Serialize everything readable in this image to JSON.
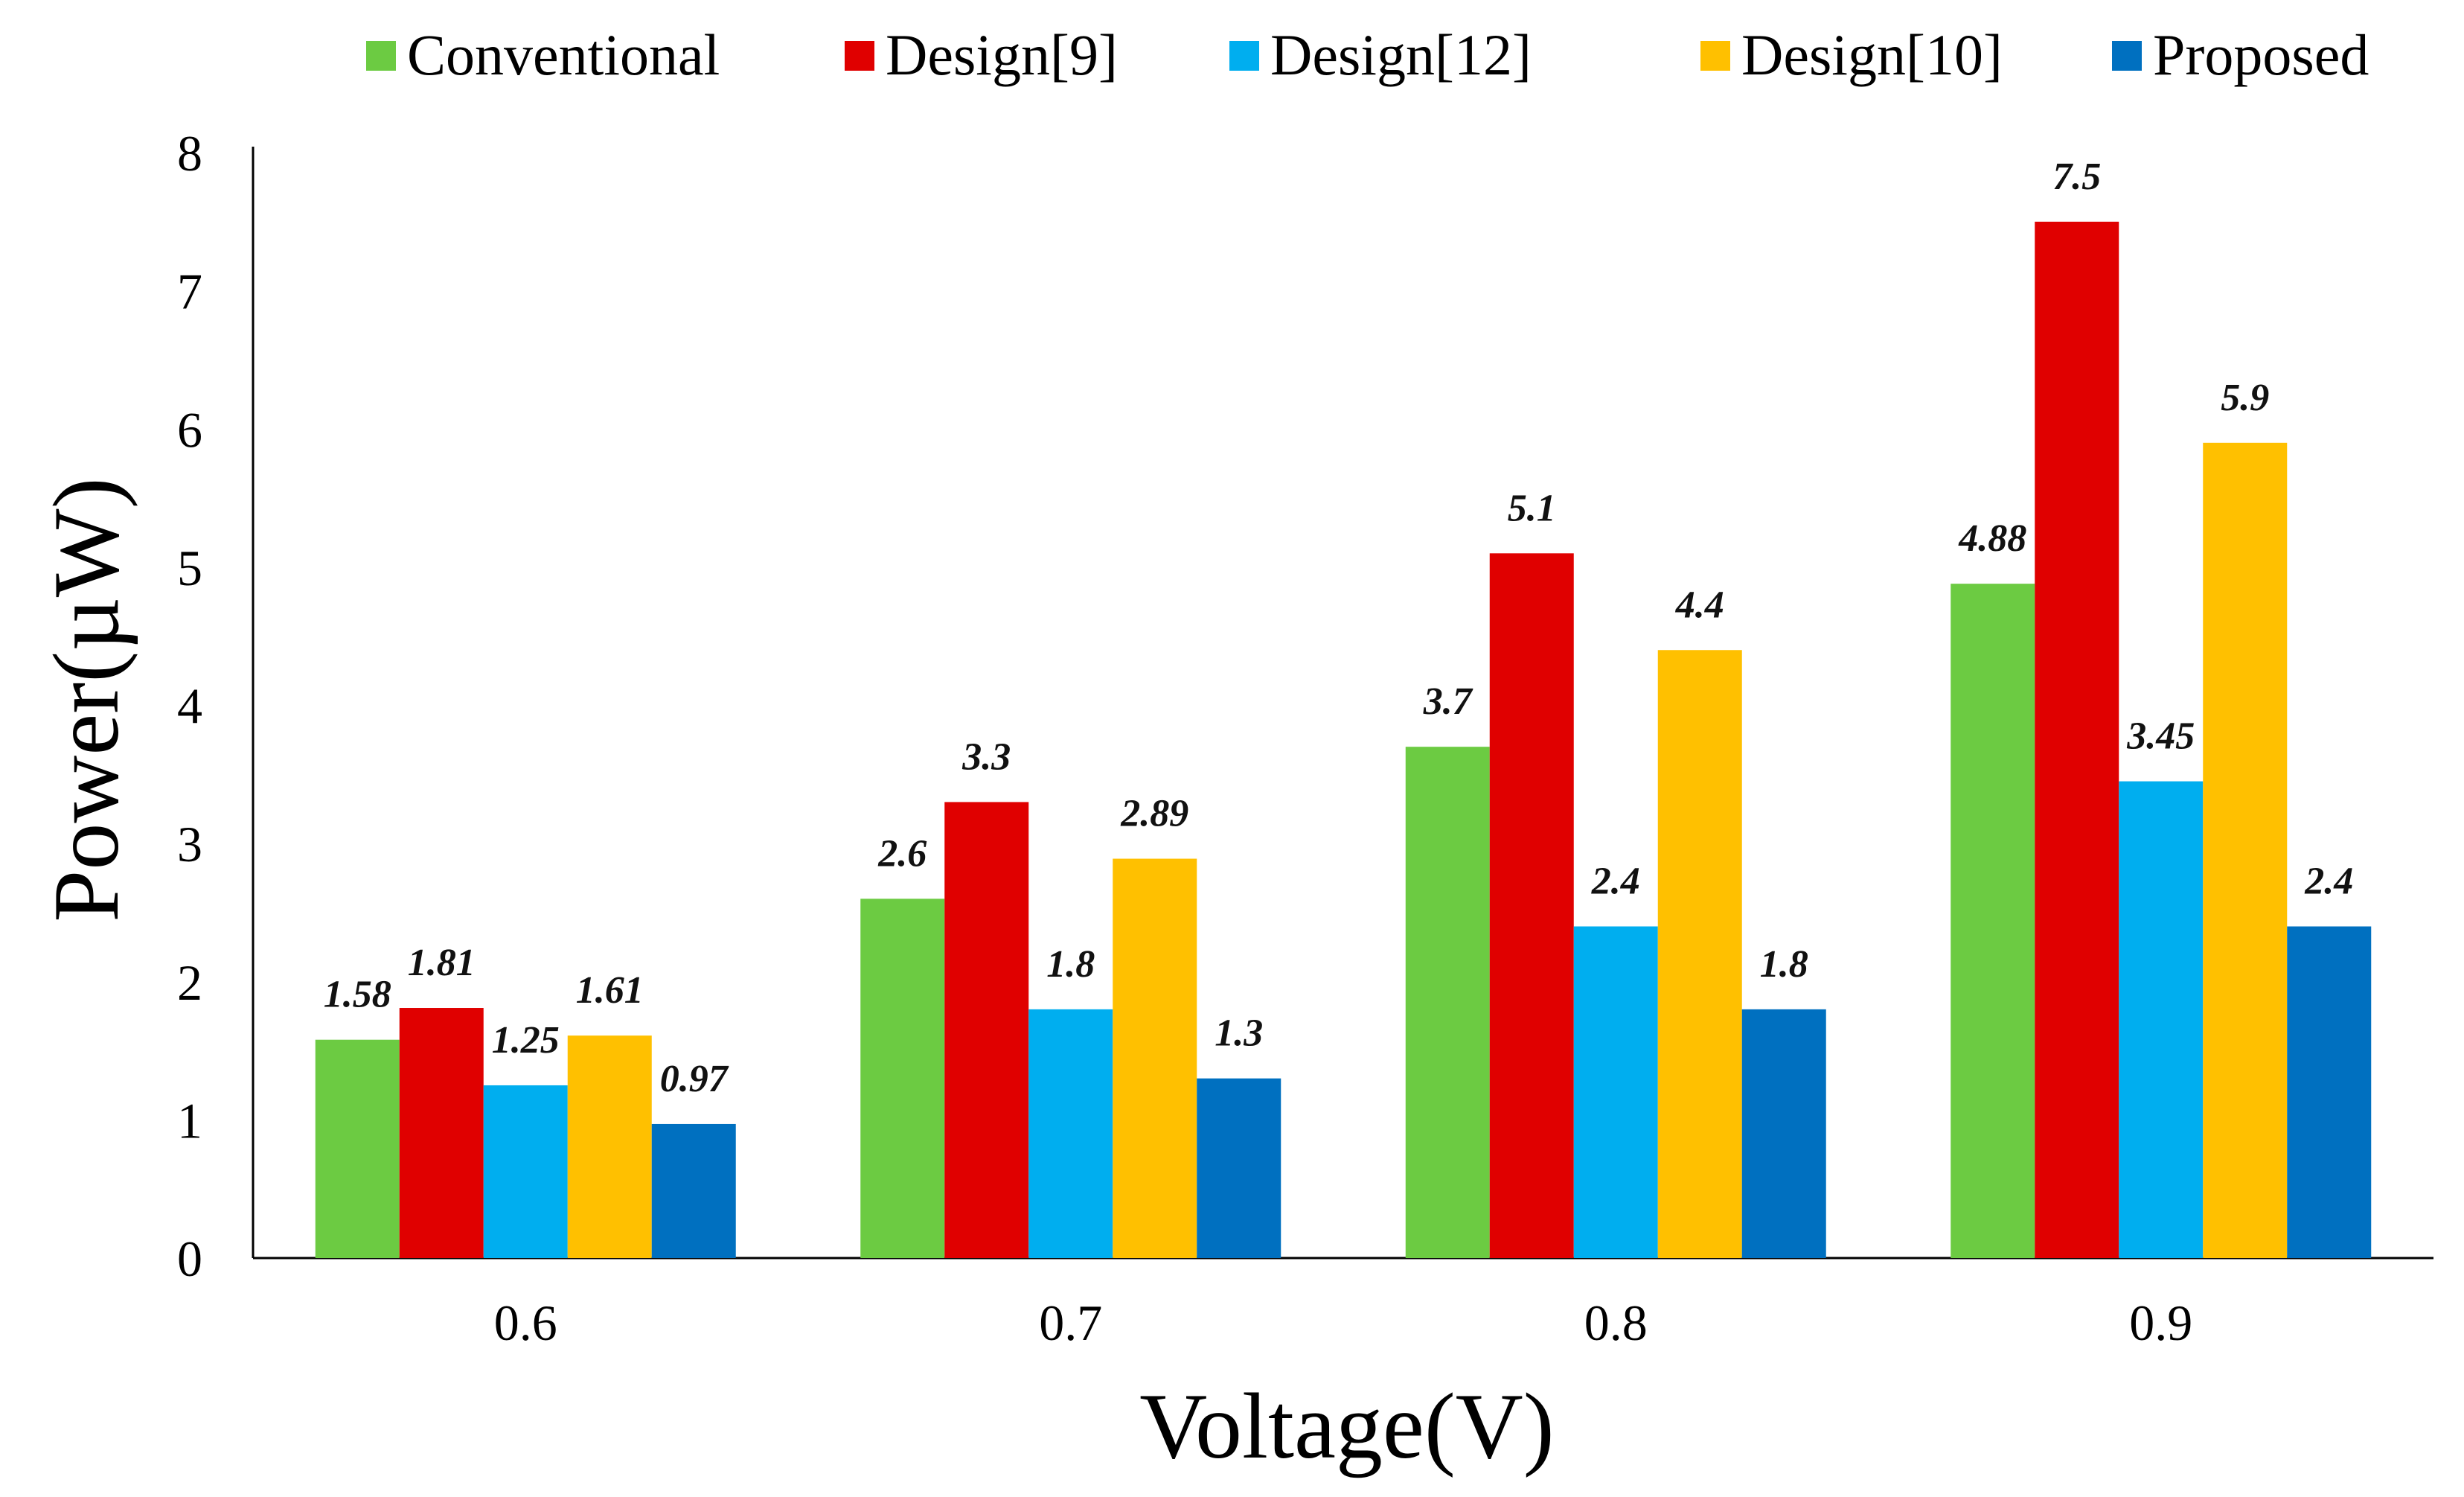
{
  "chart_data": {
    "type": "bar",
    "title": "",
    "xlabel": "Voltage(V)",
    "ylabel": "Power(µW)",
    "categories": [
      "0.6",
      "0.7",
      "0.8",
      "0.9"
    ],
    "ylim": [
      0,
      8
    ],
    "yticks": [
      0,
      1,
      2,
      3,
      4,
      5,
      6,
      7,
      8
    ],
    "grid": false,
    "legend_position": "top",
    "series": [
      {
        "name": "Conventional",
        "color": "#6CCB42",
        "values": [
          1.58,
          2.6,
          3.7,
          4.88
        ],
        "labels": [
          "1.58",
          "2.6",
          "3.7",
          "4.88"
        ]
      },
      {
        "name": "Design[9]",
        "color": "#E00000",
        "values": [
          1.81,
          3.3,
          5.1,
          7.5
        ],
        "labels": [
          "1.81",
          "3.3",
          "5.1",
          "7.5"
        ]
      },
      {
        "name": "Design[12]",
        "color": "#00AEEF",
        "values": [
          1.25,
          1.8,
          2.4,
          3.45
        ],
        "labels": [
          "1.25",
          "1.8",
          "2.4",
          "3.45"
        ]
      },
      {
        "name": "Design[10]",
        "color": "#FFC000",
        "values": [
          1.61,
          2.89,
          4.4,
          5.9
        ],
        "labels": [
          "1.61",
          "2.89",
          "4.4",
          "5.9"
        ]
      },
      {
        "name": "Proposed",
        "color": "#0070C0",
        "values": [
          0.97,
          1.3,
          1.8,
          2.4
        ],
        "labels": [
          "0.97",
          "1.3",
          "1.8",
          "2.4"
        ]
      }
    ]
  }
}
